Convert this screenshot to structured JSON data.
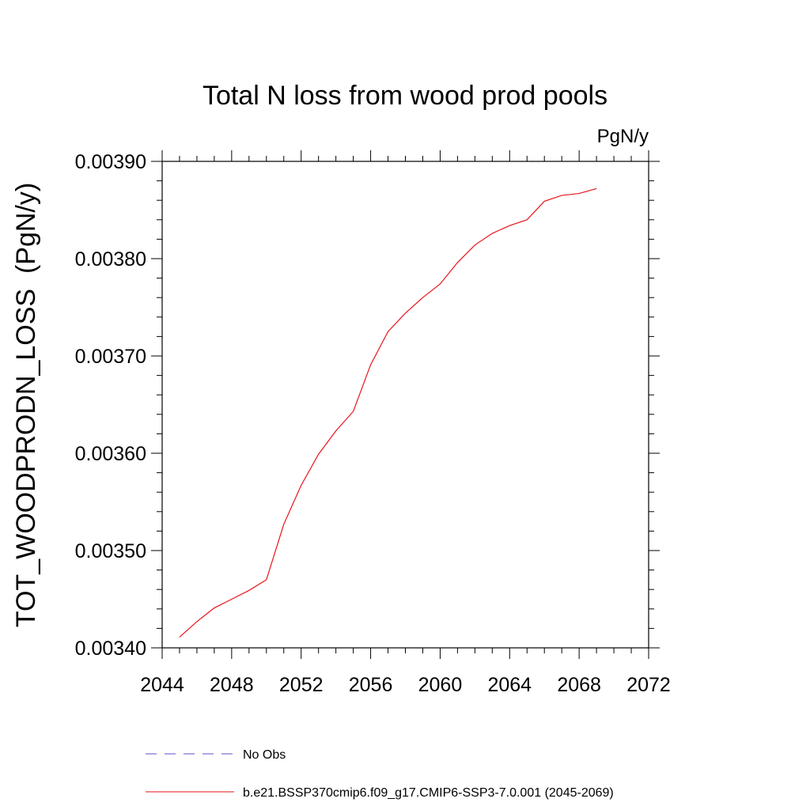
{
  "chart_data": {
    "type": "line",
    "title": "Total N loss from wood prod pools",
    "units_label": "PgN/y",
    "ylabel": "TOT_WOODPRODN_LOSS  (PgN/y)",
    "xlabel": "",
    "xlim": [
      2044,
      2072
    ],
    "ylim": [
      0.0034,
      0.0039
    ],
    "x_ticks": [
      "2044",
      "2048",
      "2052",
      "2056",
      "2060",
      "2064",
      "2068",
      "2072"
    ],
    "y_ticks": [
      "0.00340",
      "0.00350",
      "0.00360",
      "0.00370",
      "0.00380",
      "0.00390"
    ],
    "grid": false,
    "legend_placement": "bottom",
    "series": [
      {
        "name": "b.e21.BSSP370cmip6.f09_g17.CMIP6-SSP3-7.0.001 (2045-2069)",
        "color": "#e8141a",
        "style": "solid",
        "x": [
          2045,
          2046,
          2047,
          2048,
          2049,
          2050,
          2051,
          2052,
          2053,
          2054,
          2055,
          2056,
          2057,
          2058,
          2059,
          2060,
          2061,
          2062,
          2063,
          2064,
          2065,
          2066,
          2067,
          2068,
          2069
        ],
        "values": [
          0.003411,
          0.003427,
          0.003441,
          0.00345,
          0.003459,
          0.00347,
          0.003527,
          0.003567,
          0.003599,
          0.003623,
          0.003643,
          0.003691,
          0.003725,
          0.003744,
          0.00376,
          0.003774,
          0.003796,
          0.003814,
          0.003826,
          0.003834,
          0.00384,
          0.003859,
          0.003865,
          0.003867,
          0.003872
        ]
      },
      {
        "name": "No Obs",
        "color": "#5b4fc9",
        "style": "dashed",
        "x": [],
        "values": []
      }
    ]
  }
}
